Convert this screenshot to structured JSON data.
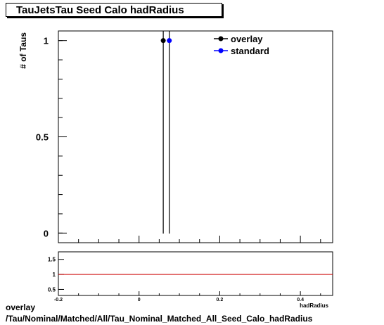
{
  "page": {
    "title": "TauJetsTau Seed Calo hadRadius",
    "caption_line1": "overlay",
    "caption_line2": "/Tau/Nominal/Matched/All/Tau_Nominal_Matched_All_Seed_Calo_hadRadius"
  },
  "chart_data": {
    "type": "scatter",
    "title": "TauJetsTau Seed Calo hadRadius",
    "ylabel": "# of Taus",
    "xlabel": "hadRadius",
    "xlim": [
      -0.2,
      0.48
    ],
    "ylim": [
      -0.05,
      1.05
    ],
    "x_ticks": [
      "-0.2",
      "0",
      "0.2",
      "0.4"
    ],
    "y_ticks": [
      "0",
      "0.5",
      "1"
    ],
    "series": [
      {
        "name": "overlay",
        "color": "#000000",
        "points": [
          {
            "x": 0.06,
            "y": 1
          }
        ]
      },
      {
        "name": "standard",
        "color": "#0000ff",
        "points": [
          {
            "x": 0.075,
            "y": 1
          }
        ]
      }
    ],
    "legend_position": "top-right",
    "ratio": {
      "ylim": [
        0.3,
        1.75
      ],
      "y_ticks": [
        "0.5",
        "1",
        "1.5"
      ],
      "reference_value": 1,
      "reference_color": "#cc0000"
    }
  }
}
